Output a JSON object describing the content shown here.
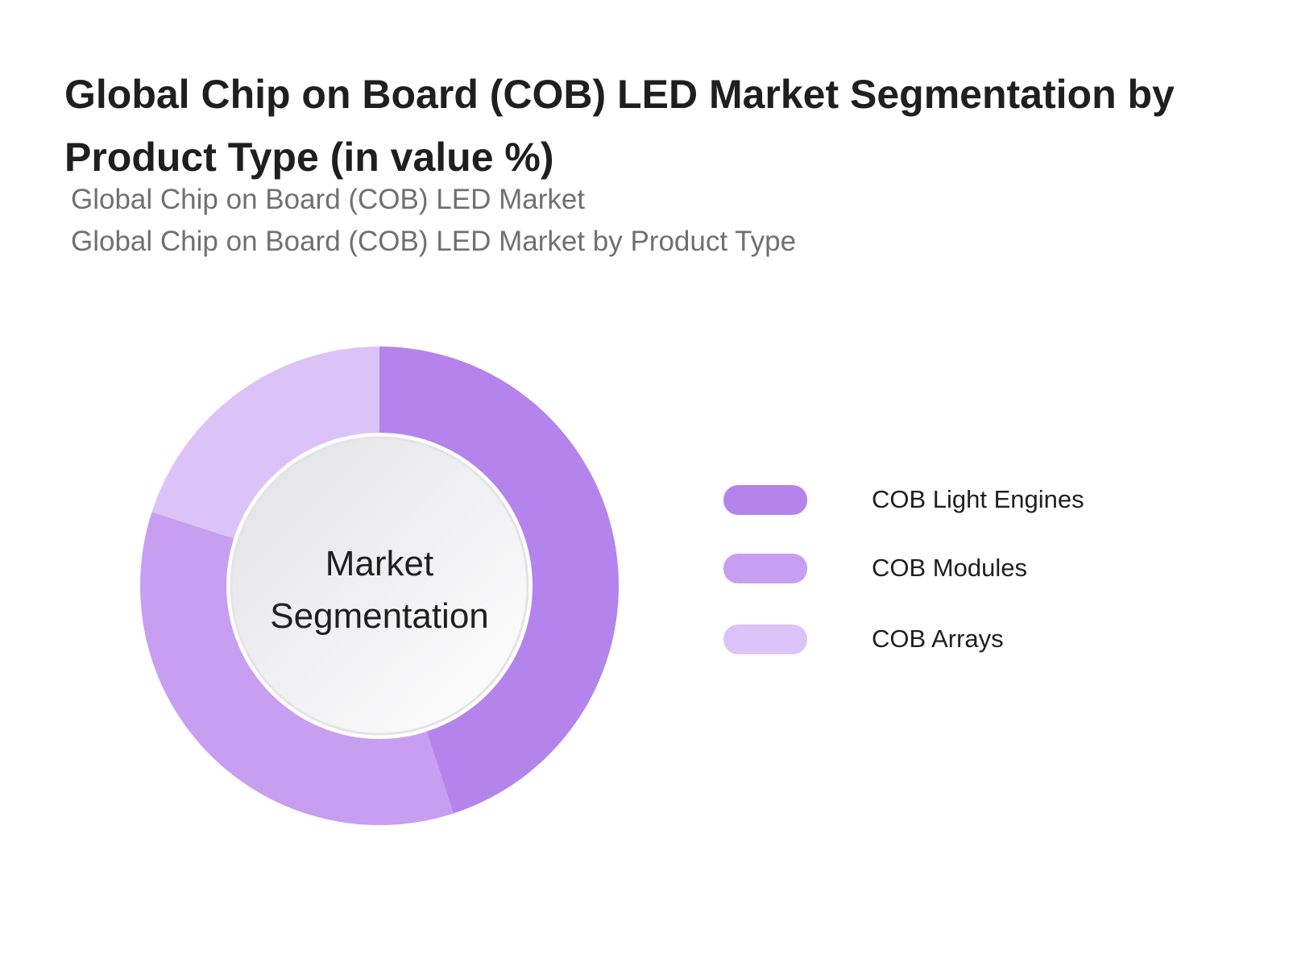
{
  "title": "Global Chip on Board (COB) LED Market Segmentation by Product Type (in value %)",
  "subtitles": [
    "Global Chip on Board (COB) LED Market",
    "Global Chip on Board (COB) LED Market by Product Type"
  ],
  "center_label": [
    "Market",
    "Segmentation"
  ],
  "chart_data": {
    "type": "pie",
    "donut": true,
    "title": "Global Chip on Board (COB) LED Market Segmentation by Product Type (in value %)",
    "categories": [
      "COB Light Engines",
      "COB Modules",
      "COB Arrays"
    ],
    "values": [
      45,
      35,
      20
    ],
    "colors": [
      "#b484ec",
      "#c79ef0",
      "#dcc3f7"
    ],
    "legend_position": "right",
    "start_angle": "top",
    "direction": "clockwise"
  }
}
